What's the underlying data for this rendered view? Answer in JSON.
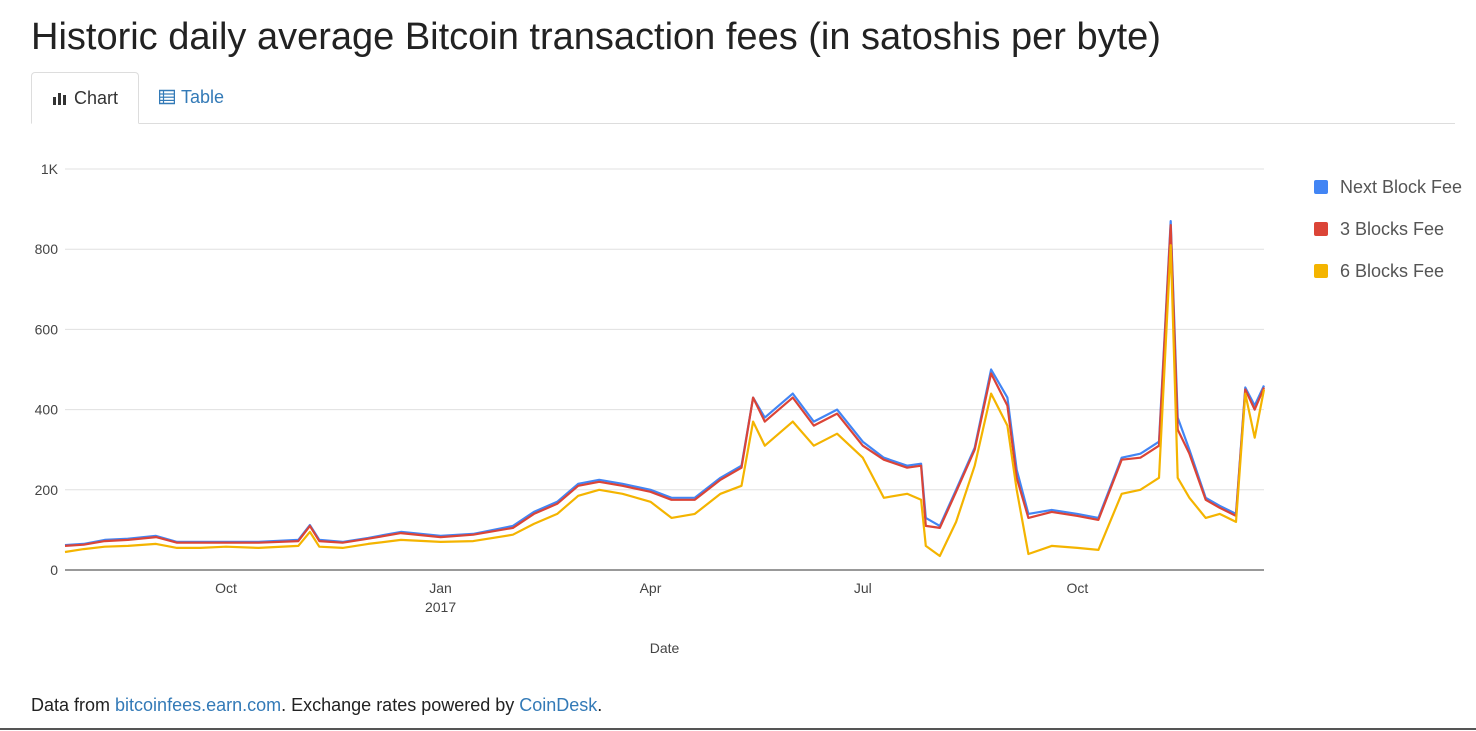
{
  "page": {
    "title": "Historic daily average Bitcoin transaction fees (in satoshis per byte)"
  },
  "tabs": [
    {
      "label": "Chart",
      "icon": "bar-chart-icon",
      "active": true
    },
    {
      "label": "Table",
      "icon": "table-icon",
      "active": false
    }
  ],
  "footer": {
    "prefix": "Data from ",
    "link1": "bitcoinfees.earn.com",
    "middle": ". Exchange rates powered by ",
    "link2": "CoinDesk",
    "suffix": "."
  },
  "colors": {
    "next_block": "#4285f4",
    "three_blocks": "#db4437",
    "six_blocks": "#f4b400",
    "link": "#337ab7",
    "grid": "#e0e0e0"
  },
  "chart_data": {
    "type": "line",
    "title": "",
    "xlabel": "Date",
    "ylabel": "",
    "x_range": [
      "2016-07-24",
      "2017-12-20"
    ],
    "ylim": [
      0,
      1000
    ],
    "y_ticks": [
      {
        "value": 0,
        "label": "0"
      },
      {
        "value": 200,
        "label": "200"
      },
      {
        "value": 400,
        "label": "400"
      },
      {
        "value": 600,
        "label": "600"
      },
      {
        "value": 800,
        "label": "800"
      },
      {
        "value": 1000,
        "label": "1K"
      }
    ],
    "x_ticks": [
      {
        "date": "2016-10-01",
        "label": "Oct",
        "sublabel": ""
      },
      {
        "date": "2017-01-01",
        "label": "Jan",
        "sublabel": "2017"
      },
      {
        "date": "2017-04-01",
        "label": "Apr",
        "sublabel": ""
      },
      {
        "date": "2017-07-01",
        "label": "Jul",
        "sublabel": ""
      },
      {
        "date": "2017-10-01",
        "label": "Oct",
        "sublabel": ""
      }
    ],
    "grid": true,
    "legend_position": "right",
    "x": [
      "2016-07-24",
      "2016-08-01",
      "2016-08-10",
      "2016-08-20",
      "2016-09-01",
      "2016-09-10",
      "2016-09-20",
      "2016-10-01",
      "2016-10-15",
      "2016-11-01",
      "2016-11-06",
      "2016-11-10",
      "2016-11-20",
      "2016-12-01",
      "2016-12-15",
      "2017-01-01",
      "2017-01-15",
      "2017-02-01",
      "2017-02-10",
      "2017-02-20",
      "2017-03-01",
      "2017-03-10",
      "2017-03-20",
      "2017-04-01",
      "2017-04-10",
      "2017-04-20",
      "2017-05-01",
      "2017-05-10",
      "2017-05-15",
      "2017-05-20",
      "2017-06-01",
      "2017-06-10",
      "2017-06-20",
      "2017-07-01",
      "2017-07-10",
      "2017-07-20",
      "2017-07-26",
      "2017-07-28",
      "2017-08-03",
      "2017-08-10",
      "2017-08-18",
      "2017-08-25",
      "2017-09-01",
      "2017-09-05",
      "2017-09-10",
      "2017-09-20",
      "2017-10-01",
      "2017-10-10",
      "2017-10-20",
      "2017-10-28",
      "2017-11-05",
      "2017-11-10",
      "2017-11-13",
      "2017-11-18",
      "2017-11-25",
      "2017-12-01",
      "2017-12-08",
      "2017-12-12",
      "2017-12-16",
      "2017-12-20"
    ],
    "series": [
      {
        "name": "Next Block Fee",
        "color": "#4285f4",
        "values": [
          62,
          65,
          75,
          78,
          85,
          70,
          70,
          70,
          70,
          75,
          112,
          75,
          70,
          80,
          95,
          85,
          90,
          110,
          145,
          170,
          215,
          225,
          215,
          200,
          180,
          180,
          230,
          260,
          430,
          380,
          440,
          370,
          400,
          320,
          280,
          260,
          265,
          130,
          110,
          200,
          305,
          500,
          430,
          250,
          140,
          150,
          140,
          130,
          280,
          290,
          320,
          870,
          380,
          300,
          180,
          160,
          140,
          455,
          410,
          460
        ]
      },
      {
        "name": "3 Blocks Fee",
        "color": "#db4437",
        "values": [
          60,
          63,
          72,
          75,
          82,
          68,
          68,
          68,
          68,
          72,
          110,
          72,
          68,
          78,
          92,
          82,
          88,
          105,
          140,
          165,
          210,
          220,
          210,
          195,
          175,
          175,
          225,
          255,
          430,
          370,
          430,
          360,
          390,
          310,
          275,
          255,
          260,
          110,
          105,
          195,
          300,
          490,
          410,
          230,
          130,
          145,
          135,
          125,
          275,
          280,
          310,
          860,
          350,
          290,
          175,
          155,
          135,
          450,
          400,
          455
        ]
      },
      {
        "name": "6 Blocks Fee",
        "color": "#f4b400",
        "values": [
          45,
          52,
          58,
          60,
          65,
          55,
          55,
          58,
          55,
          60,
          95,
          58,
          55,
          65,
          75,
          70,
          72,
          88,
          115,
          140,
          185,
          200,
          190,
          170,
          130,
          140,
          190,
          210,
          370,
          310,
          370,
          310,
          340,
          280,
          180,
          190,
          175,
          60,
          35,
          120,
          260,
          440,
          360,
          200,
          40,
          60,
          55,
          50,
          190,
          200,
          230,
          810,
          230,
          180,
          130,
          140,
          120,
          440,
          330,
          450
        ]
      }
    ]
  }
}
